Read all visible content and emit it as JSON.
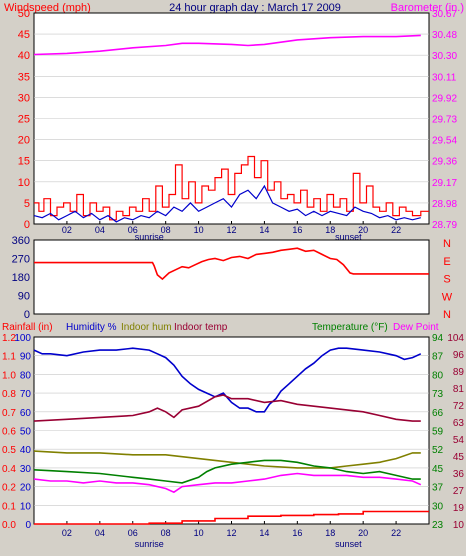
{
  "title": "24 hour graph day : March 17 2009",
  "colors": {
    "wind": "#ff0000",
    "gust": "#0000cc",
    "baro": "#ff00ff",
    "dir": "#ff0000",
    "rain": "#ff0000",
    "humidity": "#0000cc",
    "indoor_hum": "#808000",
    "indoor_temp": "#990033",
    "temp": "#008000",
    "dew": "#ff00ff"
  },
  "chart_data": [
    {
      "type": "line",
      "name": "wind-baro",
      "left_label": "Windspeed (mph)",
      "right_label": "Barometer (in.)",
      "x_ticks": [
        "02",
        "04",
        "06",
        "08",
        "10",
        "12",
        "14",
        "16",
        "18",
        "20",
        "22"
      ],
      "sunrise_label": "sunrise",
      "sunset_label": "sunset",
      "sunrise_hour": 7.0,
      "sunset_hour": 19.1,
      "xlim": [
        0,
        24
      ],
      "ylim_left": [
        0,
        50
      ],
      "left_ticks": [
        "0",
        "5",
        "10",
        "15",
        "20",
        "25",
        "30",
        "35",
        "40",
        "45",
        "50"
      ],
      "ylim_right": [
        28.79,
        30.67
      ],
      "right_ticks": [
        "28.79",
        "28.98",
        "29.17",
        "29.36",
        "29.54",
        "29.73",
        "29.92",
        "30.11",
        "30.30",
        "30.48",
        "30.67"
      ],
      "series": [
        {
          "key": "baro",
          "axis": "right",
          "x": [
            0,
            2,
            4,
            6,
            8,
            9,
            10,
            12,
            13,
            14,
            16,
            18,
            20,
            22,
            23.5
          ],
          "y": [
            30.3,
            30.31,
            30.33,
            30.36,
            30.38,
            30.4,
            30.4,
            30.39,
            30.38,
            30.39,
            30.43,
            30.45,
            30.46,
            30.46,
            30.47
          ]
        },
        {
          "key": "wind",
          "axis": "left",
          "step": true,
          "x": [
            0,
            0.3,
            0.6,
            1,
            1.4,
            1.8,
            2.2,
            2.6,
            3,
            3.4,
            3.8,
            4.2,
            4.6,
            5,
            5.4,
            5.8,
            6.2,
            6.6,
            7,
            7.4,
            7.8,
            8.2,
            8.6,
            9,
            9.4,
            9.8,
            10.2,
            10.6,
            11,
            11.4,
            11.8,
            12.2,
            12.6,
            13,
            13.4,
            13.8,
            14.2,
            14.6,
            15,
            15.4,
            15.8,
            16.2,
            16.6,
            17,
            17.4,
            17.8,
            18.2,
            18.6,
            19,
            19.4,
            19.8,
            20.2,
            20.6,
            21,
            21.4,
            21.8,
            22.2,
            22.6,
            23,
            23.5
          ],
          "y": [
            5,
            3,
            6,
            2,
            4,
            5,
            3,
            7,
            2,
            5,
            3,
            4,
            1,
            3,
            2,
            4,
            3,
            6,
            3,
            9,
            4,
            7,
            14,
            6,
            10,
            5,
            9,
            8,
            11,
            13,
            7,
            12,
            14,
            16,
            11,
            15,
            8,
            10,
            6,
            7,
            5,
            8,
            4,
            6,
            3,
            7,
            4,
            6,
            3,
            12,
            5,
            9,
            4,
            3,
            5,
            2,
            4,
            3,
            2,
            3
          ]
        },
        {
          "key": "gust",
          "axis": "left",
          "x": [
            0,
            0.5,
            1,
            1.5,
            2,
            2.5,
            3,
            3.5,
            4,
            4.5,
            5,
            5.5,
            6,
            6.5,
            7,
            7.5,
            8,
            8.5,
            9,
            9.5,
            10,
            10.5,
            11,
            11.5,
            12,
            12.5,
            13,
            13.5,
            14,
            14.5,
            15,
            15.5,
            16,
            16.5,
            17,
            17.5,
            18,
            18.5,
            19,
            19.5,
            20,
            20.5,
            21,
            21.5,
            22,
            22.5,
            23,
            23.5
          ],
          "y": [
            2,
            1.5,
            2.5,
            1,
            2,
            3,
            1.5,
            2.5,
            1,
            2,
            0.5,
            1.5,
            1,
            2,
            1.5,
            3,
            2,
            4,
            3,
            5,
            3,
            4,
            5,
            6,
            4,
            7,
            8,
            6,
            9,
            5,
            4,
            3,
            3.5,
            2,
            3,
            2,
            3,
            2.5,
            2,
            4,
            3,
            2.5,
            1.5,
            2,
            1,
            1.5,
            1,
            1.5
          ]
        }
      ]
    },
    {
      "type": "line",
      "name": "wind-direction",
      "left_ticks": [
        "0",
        "90",
        "180",
        "270",
        "360"
      ],
      "right_ticks": [
        "N",
        "E",
        "S",
        "W",
        "N"
      ],
      "ylim": [
        0,
        360
      ],
      "xlim": [
        0,
        24
      ],
      "series": [
        {
          "key": "dir",
          "x": [
            0,
            7.2,
            7.3,
            7.5,
            7.8,
            8.2,
            8.6,
            9,
            9.4,
            9.8,
            10.2,
            10.6,
            11,
            11.5,
            12,
            12.5,
            13,
            13.5,
            14,
            14.5,
            15,
            15.5,
            16,
            16.5,
            17,
            17.5,
            18,
            18.4,
            18.8,
            19.2,
            19.4,
            24
          ],
          "y": [
            250,
            250,
            235,
            190,
            170,
            200,
            215,
            230,
            225,
            240,
            255,
            265,
            270,
            260,
            275,
            280,
            270,
            290,
            295,
            300,
            310,
            315,
            320,
            305,
            310,
            290,
            270,
            265,
            240,
            200,
            195,
            195
          ]
        }
      ]
    },
    {
      "type": "line",
      "name": "rain-humidity-temp",
      "labels": {
        "rain": "Rainfall (in)",
        "humidity": "Humidity %",
        "indoor_hum": "Indoor hum",
        "indoor_temp": "Indoor temp",
        "temp": "Temperature (°F)",
        "dew": "Dew Point"
      },
      "xlim": [
        0,
        24
      ],
      "ylim_hum": [
        0,
        100
      ],
      "hum_ticks": [
        "0",
        "10",
        "20",
        "30",
        "40",
        "50",
        "60",
        "70",
        "80",
        "90",
        "100"
      ],
      "ylim_rain": [
        0,
        1.2
      ],
      "rain_ticks": [
        "0.0",
        "0.1",
        "0.2",
        "0.4",
        "0.5",
        "0.6",
        "0.7",
        "0.8",
        "1.0",
        "1.1",
        "1.2"
      ],
      "ylim_in": [
        10,
        104
      ],
      "in_ticks": [
        "10",
        "19",
        "27",
        "36",
        "45",
        "54",
        "63",
        "72",
        "81",
        "89",
        "96",
        "104"
      ],
      "ylim_out": [
        23,
        94
      ],
      "out_ticks": [
        "23",
        "30",
        "37",
        "45",
        "52",
        "59",
        "66",
        "73",
        "80",
        "87",
        "94"
      ],
      "series": [
        {
          "key": "humidity",
          "x": [
            0,
            0.5,
            1,
            2,
            3,
            4,
            5,
            6,
            7,
            7.5,
            8,
            8.5,
            9,
            9.5,
            10,
            10.5,
            11,
            11.5,
            12,
            12.5,
            13,
            13.5,
            14,
            14.3,
            14.7,
            15,
            15.5,
            16,
            16.5,
            17,
            17.5,
            18,
            18.5,
            19,
            20,
            21,
            22,
            22.5,
            23,
            23.5
          ],
          "y": [
            93,
            91,
            91,
            90,
            92,
            93,
            93,
            94,
            93,
            91,
            89,
            85,
            79,
            75,
            72,
            70,
            68,
            70,
            65,
            62,
            62,
            60,
            60,
            64,
            67,
            71,
            75,
            79,
            83,
            86,
            90,
            93,
            94,
            94,
            93,
            92,
            90,
            88,
            89,
            91
          ]
        },
        {
          "key": "indoor_temp",
          "x": [
            0,
            2,
            4,
            6,
            7,
            7.5,
            8,
            8.5,
            9,
            10,
            11,
            11.5,
            12,
            13,
            14,
            15,
            16,
            17,
            18,
            19,
            20,
            21,
            22,
            23,
            23.5
          ],
          "y": [
            55,
            56,
            57,
            58,
            60,
            62,
            60,
            57,
            61,
            63,
            68,
            69,
            67,
            67,
            65,
            66,
            64,
            63,
            62,
            61,
            60,
            58,
            56,
            55,
            55
          ]
        },
        {
          "key": "indoor_hum",
          "x": [
            0,
            2,
            4,
            6,
            8,
            9,
            10,
            12,
            14,
            16,
            18,
            19,
            20,
            21,
            22,
            23,
            23.5
          ],
          "y": [
            39,
            38,
            38,
            37,
            37,
            36,
            35,
            33,
            31,
            30,
            30,
            31,
            32,
            33,
            35,
            38,
            38
          ]
        },
        {
          "key": "temp",
          "x": [
            0,
            2,
            4,
            6,
            7,
            8,
            9,
            10,
            10.5,
            11,
            12,
            13,
            14,
            15,
            16,
            17,
            18,
            19,
            20,
            21,
            22,
            23,
            23.5
          ],
          "y": [
            29,
            28,
            27,
            25,
            24,
            23,
            22,
            25,
            28,
            30,
            32,
            33,
            34,
            34,
            33,
            31,
            30,
            28,
            27,
            28,
            26,
            24,
            24
          ]
        },
        {
          "key": "dew",
          "x": [
            0,
            1,
            2,
            3,
            4,
            5,
            6,
            7,
            8,
            8.5,
            9,
            10,
            11,
            12,
            13,
            14,
            15,
            16,
            17,
            18,
            19,
            20,
            21,
            22,
            23,
            23.5
          ],
          "y": [
            24,
            23,
            23,
            22,
            23,
            22,
            22,
            21,
            19,
            17,
            20,
            21,
            22,
            22,
            23,
            24,
            26,
            27,
            26,
            26,
            26,
            25,
            25,
            24,
            23,
            21
          ]
        },
        {
          "key": "rain",
          "axis": "rain",
          "step": true,
          "x": [
            0,
            7,
            9,
            11,
            13,
            15,
            17,
            18.5,
            19.5,
            20,
            23.5
          ],
          "y": [
            0,
            0.005,
            0.02,
            0.035,
            0.05,
            0.055,
            0.06,
            0.065,
            0.065,
            0.08,
            0.08
          ]
        }
      ]
    }
  ]
}
